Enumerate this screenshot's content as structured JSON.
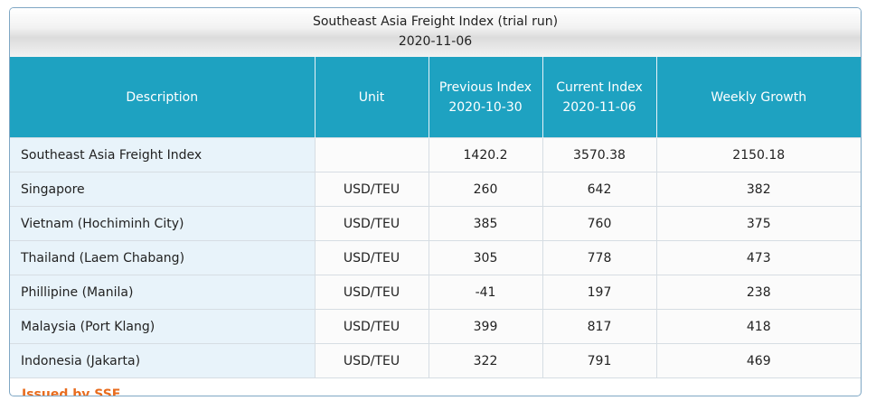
{
  "header": {
    "title": "Southeast Asia Freight Index (trial run)",
    "date": "2020-11-06"
  },
  "table": {
    "columns": [
      [
        "Description"
      ],
      [
        "Unit"
      ],
      [
        "Previous Index",
        "2020-10-30"
      ],
      [
        "Current Index",
        "2020-11-06"
      ],
      [
        "Weekly Growth"
      ]
    ],
    "rows": [
      {
        "name": "Southeast Asia Freight Index",
        "previous": "1420.2",
        "current": "3570.38",
        "growth": "2150.18"
      },
      {
        "name": "Singapore",
        "unit": "USD/TEU",
        "previous": "260",
        "current": "642",
        "growth": "382"
      },
      {
        "name": "Vietnam (Hochiminh City)",
        "unit": "USD/TEU",
        "previous": "385",
        "current": "760",
        "growth": "375"
      },
      {
        "name": "Thailand (Laem Chabang)",
        "unit": "USD/TEU",
        "previous": "305",
        "current": "778",
        "growth": "473"
      },
      {
        "name": "Phillipine (Manila)",
        "unit": "USD/TEU",
        "previous": "-41",
        "current": "197",
        "growth": "238"
      },
      {
        "name": "Malaysia (Port Klang)",
        "unit": "USD/TEU",
        "previous": "399",
        "current": "817",
        "growth": "418"
      },
      {
        "name": "Indonesia (Jakarta)",
        "unit": "USD/TEU",
        "previous": "322",
        "current": "791",
        "growth": "469"
      }
    ]
  },
  "footer": {
    "text": "Issued by SSE"
  }
}
